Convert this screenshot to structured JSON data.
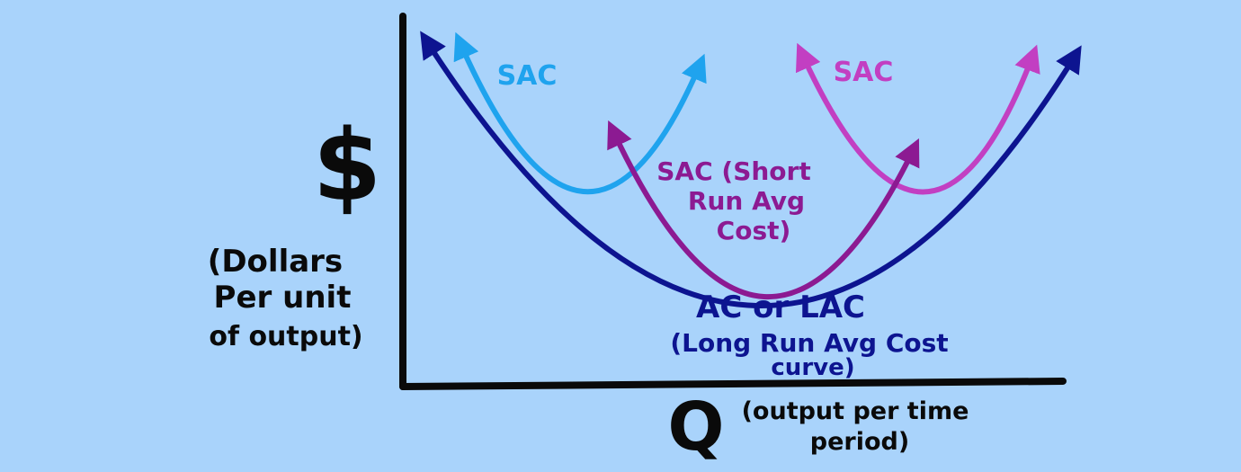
{
  "colors": {
    "background": "#a9d3fb",
    "axis": "#0a0a0a",
    "lac": "#0d1490",
    "sac_left": "#1fa3ee",
    "sac_middle": "#8c1a92",
    "sac_right": "#c23fc2",
    "text_black": "#0a0a0a"
  },
  "y_axis": {
    "symbol": "$",
    "label_lines": [
      "(Dollars",
      "Per unit",
      "of output)"
    ]
  },
  "x_axis": {
    "symbol": "Q",
    "label_lines": [
      "(output per time",
      "period)"
    ]
  },
  "curves": {
    "sac_left_label": "SAC",
    "sac_middle_label_lines": [
      "SAC (Short",
      "Run Avg",
      "Cost)"
    ],
    "sac_right_label": "SAC",
    "lac_label": "AC or LAC",
    "lac_desc_lines": [
      "(Long Run Avg Cost",
      "curve)"
    ]
  }
}
